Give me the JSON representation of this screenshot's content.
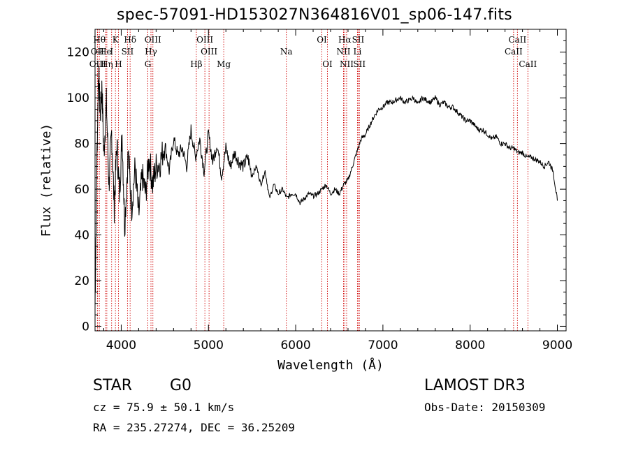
{
  "chart_data": {
    "type": "line",
    "title": "spec-57091-HD153027N364816V01_sp06-147.fits",
    "xlabel": "Wavelength (Å)",
    "ylabel": "Flux (relative)",
    "xlim": [
      3700,
      9100
    ],
    "ylim": [
      -2,
      130
    ],
    "xticks": [
      4000,
      5000,
      6000,
      7000,
      8000,
      9000
    ],
    "yticks": [
      0,
      20,
      40,
      60,
      80,
      100,
      120
    ],
    "xtick_labels": [
      "4000",
      "5000",
      "6000",
      "7000",
      "8000",
      "9000"
    ],
    "ytick_labels": [
      "0",
      "20",
      "40",
      "60",
      "80",
      "100",
      "120"
    ],
    "series": [
      {
        "name": "flux",
        "x": [
          3700,
          3720,
          3740,
          3760,
          3780,
          3800,
          3830,
          3860,
          3890,
          3920,
          3950,
          3980,
          4010,
          4040,
          4080,
          4120,
          4160,
          4200,
          4240,
          4280,
          4320,
          4360,
          4400,
          4450,
          4500,
          4550,
          4600,
          4650,
          4700,
          4750,
          4800,
          4850,
          4900,
          4950,
          5000,
          5050,
          5100,
          5150,
          5200,
          5250,
          5300,
          5350,
          5400,
          5450,
          5500,
          5550,
          5600,
          5650,
          5700,
          5750,
          5800,
          5850,
          5900,
          5950,
          6000,
          6050,
          6100,
          6150,
          6200,
          6250,
          6300,
          6350,
          6400,
          6450,
          6500,
          6550,
          6600,
          6650,
          6700,
          6750,
          6800,
          6850,
          6900,
          6950,
          7000,
          7050,
          7100,
          7150,
          7200,
          7250,
          7300,
          7350,
          7400,
          7450,
          7500,
          7550,
          7600,
          7650,
          7700,
          7750,
          7800,
          7850,
          7900,
          7950,
          8000,
          8050,
          8100,
          8150,
          8200,
          8250,
          8300,
          8350,
          8400,
          8450,
          8500,
          8550,
          8600,
          8650,
          8700,
          8750,
          8800,
          8850,
          8900,
          8950,
          9000
        ],
        "y": [
          8,
          70,
          112,
          92,
          105,
          75,
          98,
          62,
          85,
          52,
          80,
          58,
          84,
          44,
          76,
          52,
          70,
          48,
          66,
          58,
          74,
          62,
          70,
          72,
          80,
          68,
          82,
          75,
          78,
          70,
          86,
          74,
          82,
          68,
          84,
          72,
          80,
          66,
          78,
          70,
          76,
          72,
          70,
          74,
          66,
          70,
          62,
          68,
          56,
          62,
          58,
          60,
          56,
          58,
          58,
          54,
          56,
          58,
          57,
          58,
          60,
          62,
          58,
          60,
          58,
          62,
          64,
          70,
          76,
          82,
          84,
          88,
          92,
          95,
          96,
          98,
          98,
          99,
          100,
          98,
          99,
          100,
          97,
          100,
          99,
          98,
          100,
          97,
          98,
          96,
          96,
          94,
          92,
          90,
          90,
          88,
          86,
          86,
          84,
          82,
          83,
          80,
          80,
          78,
          78,
          76,
          76,
          74,
          74,
          73,
          72,
          70,
          72,
          68,
          55
        ]
      }
    ],
    "lines": [
      {
        "name": "Hθ",
        "wl": 3750,
        "row": 1
      },
      {
        "name": "OII",
        "wl": 3727,
        "row": 2
      },
      {
        "name": "OIII",
        "wl": 3730,
        "row": 3
      },
      {
        "name": "He",
        "wl": 3819,
        "row": 2
      },
      {
        "name": "Hη",
        "wl": 3835,
        "row": 3
      },
      {
        "name": "K",
        "wl": 3934,
        "row": 1
      },
      {
        "name": "H",
        "wl": 3968,
        "row": 3
      },
      {
        "name": "I",
        "wl": 3890,
        "row": 2
      },
      {
        "name": "SII",
        "wl": 4072,
        "row": 2
      },
      {
        "name": "Hδ",
        "wl": 4102,
        "row": 1
      },
      {
        "name": "OIII",
        "wl": 4363,
        "row": 1
      },
      {
        "name": "Hγ",
        "wl": 4341,
        "row": 2
      },
      {
        "name": "G",
        "wl": 4305,
        "row": 3
      },
      {
        "name": "OIII",
        "wl": 4959,
        "row": 1
      },
      {
        "name": "OIII",
        "wl": 5007,
        "row": 2
      },
      {
        "name": "Hβ",
        "wl": 4861,
        "row": 3
      },
      {
        "name": "Mg",
        "wl": 5175,
        "row": 3
      },
      {
        "name": "Na",
        "wl": 5893,
        "row": 2
      },
      {
        "name": "OI",
        "wl": 6300,
        "row": 1
      },
      {
        "name": "OI",
        "wl": 6364,
        "row": 3
      },
      {
        "name": "Hα",
        "wl": 6563,
        "row": 1
      },
      {
        "name": "SII",
        "wl": 6716,
        "row": 1
      },
      {
        "name": "NII",
        "wl": 6548,
        "row": 2
      },
      {
        "name": "Li",
        "wl": 6708,
        "row": 2
      },
      {
        "name": "NII",
        "wl": 6584,
        "row": 3
      },
      {
        "name": "SII",
        "wl": 6731,
        "row": 3
      },
      {
        "name": "CaII",
        "wl": 8542,
        "row": 1
      },
      {
        "name": "CaII",
        "wl": 8498,
        "row": 2
      },
      {
        "name": "CaII",
        "wl": 8662,
        "row": 3
      }
    ]
  },
  "info": {
    "object_class": "STAR",
    "subclass": "G0",
    "survey": "LAMOST DR3",
    "cz": "cz = 75.9 ± 50.1 km/s",
    "obs_date": "Obs-Date: 20150309",
    "coords": "RA = 235.27274, DEC =  36.25209"
  }
}
